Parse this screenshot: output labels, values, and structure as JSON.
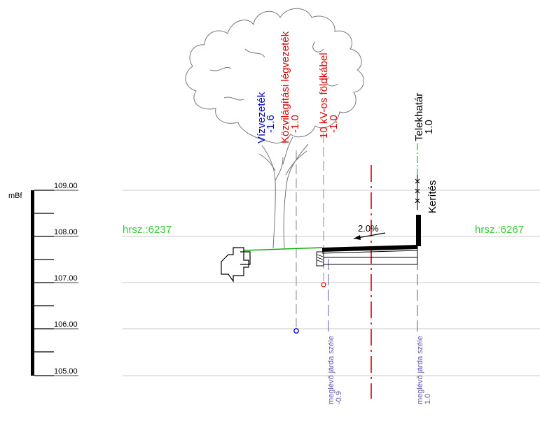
{
  "scale": {
    "unit": "mBf",
    "levels": [
      "109.00",
      "108.00",
      "107.00",
      "106.00",
      "105.00"
    ]
  },
  "parcels": {
    "left": "hrsz.:6237",
    "right": "hrsz.:6267"
  },
  "slope": "2.0%",
  "utilities": {
    "water": {
      "name": "Vízvezeték",
      "depth": "-1.6"
    },
    "street_light": {
      "name": "Közvilágítási légvezeték",
      "depth": "-1.0"
    },
    "power_cable": {
      "name": "10 kV-os földkábel",
      "depth": "-1.0"
    }
  },
  "property_line": {
    "name": "Telekhatár",
    "value": "1.0"
  },
  "fence": "Kerítés",
  "sidewalk_left": {
    "name": "meglévő járda széle",
    "value": "-0.9"
  },
  "sidewalk_right": {
    "name": "meglévő járda széle",
    "value": "1.0"
  },
  "colors": {
    "ground": "#00aa00",
    "parcel_text": "#33cc33",
    "water": "#0000cc",
    "utility_red": "#dd0000",
    "sidewalk_blue": "#6655aa",
    "grid": "#c8c8c8",
    "tree": "#777777"
  }
}
